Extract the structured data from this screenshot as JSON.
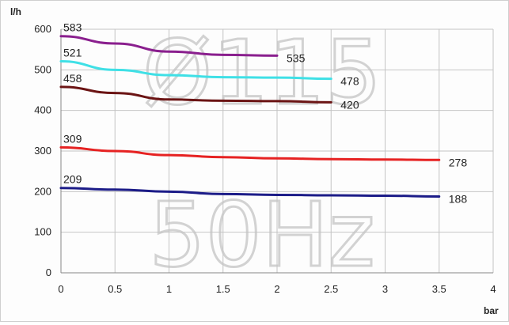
{
  "chart_data": {
    "type": "line",
    "title": "",
    "xlabel": "bar",
    "ylabel": "l/h",
    "xlim": [
      0,
      4
    ],
    "ylim": [
      0,
      600
    ],
    "xticks": [
      "0",
      "0.5",
      "1",
      "1.5",
      "2",
      "2.5",
      "3",
      "3.5",
      "4"
    ],
    "yticks": [
      "0",
      "100",
      "200",
      "300",
      "400",
      "500",
      "600"
    ],
    "grid": true,
    "legend": "none",
    "watermark": [
      "Ø115",
      "50Hz"
    ],
    "series": [
      {
        "color": "#8a1f8e",
        "x": [
          0,
          0.5,
          1,
          1.5,
          2
        ],
        "y": [
          583,
          565,
          545,
          537,
          535
        ],
        "start_label": "583",
        "end_label": "535"
      },
      {
        "color": "#3fe0e6",
        "x": [
          0,
          0.5,
          1,
          1.5,
          2,
          2.5
        ],
        "y": [
          521,
          500,
          487,
          482,
          481,
          478
        ],
        "start_label": "521",
        "end_label": "478"
      },
      {
        "color": "#6b1414",
        "x": [
          0,
          0.5,
          1,
          1.5,
          2,
          2.5
        ],
        "y": [
          458,
          443,
          427,
          424,
          423,
          420
        ],
        "start_label": "458",
        "end_label": "420"
      },
      {
        "color": "#e62222",
        "x": [
          0,
          0.5,
          1,
          1.5,
          2,
          2.5,
          3,
          3.5
        ],
        "y": [
          309,
          300,
          290,
          285,
          282,
          280,
          279,
          278
        ],
        "start_label": "309",
        "end_label": "278"
      },
      {
        "color": "#1c1c88",
        "x": [
          0,
          0.5,
          1,
          1.5,
          2,
          2.5,
          3,
          3.5
        ],
        "y": [
          209,
          205,
          200,
          194,
          192,
          191,
          190,
          188
        ],
        "start_label": "209",
        "end_label": "188"
      }
    ]
  }
}
